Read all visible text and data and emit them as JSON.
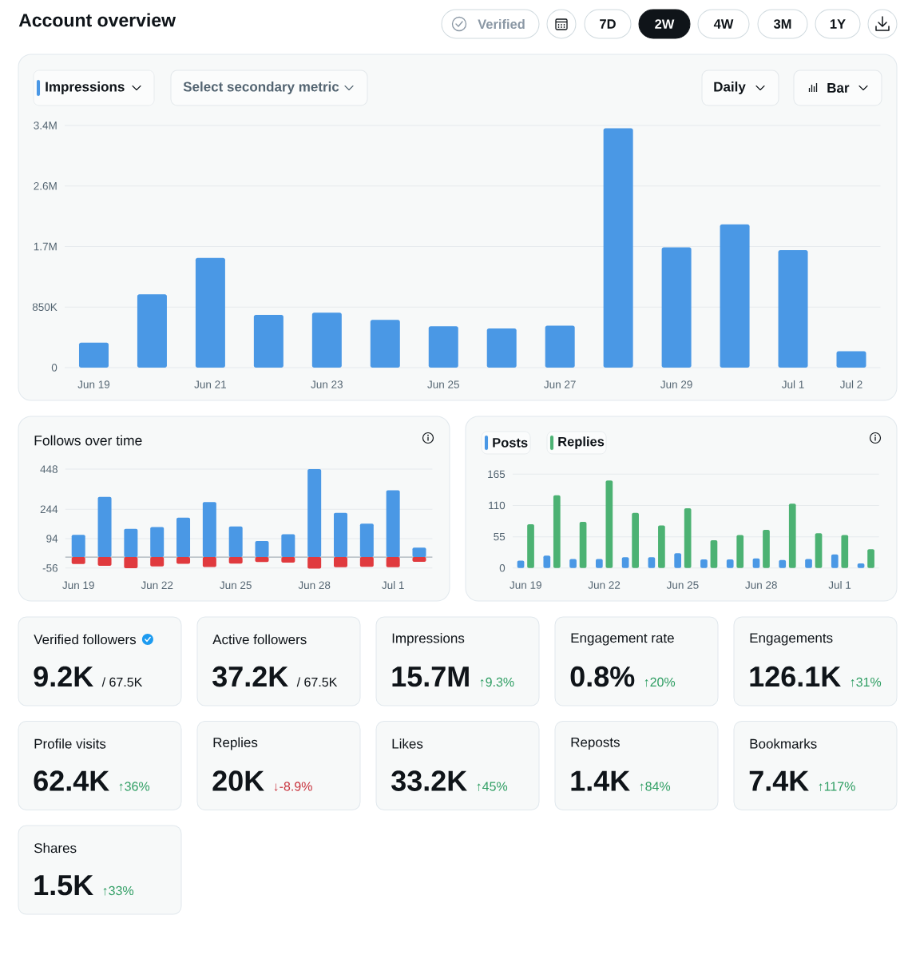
{
  "chart_data": [
    {
      "type": "other",
      "title": "Account overview",
      "annotations": [
        "Verified",
        "7D",
        "2W",
        "4W",
        "3M",
        "1Y"
      ]
    },
    {
      "type": "bar",
      "annotations": [
        "Select secondary metric",
        "Daily",
        "Bar"
      ],
      "categories": [
        "Jun 19",
        null,
        "Jun 21",
        null,
        "Jun 23",
        null,
        "Jun 25",
        null,
        "Jun 27",
        null,
        "Jun 29",
        null,
        "Jul 1",
        "Jul 2"
      ],
      "series": [
        {
          "name": "Impressions",
          "color": "#4a98e5",
          "values": [
            350000,
            1030000,
            1540000,
            740000,
            770000,
            670000,
            580000,
            550000,
            590000,
            3360000,
            1690000,
            2010000,
            1650000,
            230000
          ]
        }
      ],
      "ylim": [
        0,
        3400000
      ],
      "yticks": [
        0,
        {
          "value": 850000,
          "label": "850K"
        },
        {
          "value": 1700000,
          "label": "1.7M"
        },
        {
          "value": 2550000,
          "label": "2.6M"
        },
        {
          "value": 3400000,
          "label": "3.4M"
        }
      ],
      "grid": "y",
      "legend": "top left"
    },
    {
      "type": "bar",
      "title": "Follows over time",
      "stacked": true,
      "categories": [
        "Jun 19",
        null,
        null,
        "Jun 22",
        null,
        null,
        "Jun 25",
        null,
        null,
        "Jun 28",
        null,
        null,
        "Jul 1",
        null
      ],
      "series": [
        {
          "color": "#4a98e5",
          "values": [
            113,
            307,
            144,
            153,
            201,
            280,
            156,
            82,
            116,
            448,
            225,
            170,
            340,
            48
          ]
        },
        {
          "color": "#e03a3e",
          "values": [
            -35,
            -45,
            -57,
            -48,
            -34,
            -51,
            -33,
            -25,
            -28,
            -59,
            -52,
            -50,
            -52,
            -24
          ]
        }
      ],
      "ylim": [
        -60,
        448
      ],
      "yticks": [
        -56,
        94,
        244,
        448
      ],
      "grid": "y"
    },
    {
      "type": "bar",
      "categories": [
        "Jun 19",
        null,
        null,
        "Jun 22",
        null,
        null,
        "Jun 25",
        null,
        null,
        "Jun 28",
        null,
        null,
        "Jul 1",
        null
      ],
      "series": [
        {
          "name": "Posts",
          "color": "#4a98e5",
          "values": [
            13,
            22,
            16,
            16,
            19,
            19,
            26,
            15,
            15,
            17,
            14,
            16,
            24,
            8
          ]
        },
        {
          "name": "Replies",
          "color": "#4cb273",
          "values": [
            77,
            128,
            81,
            154,
            97,
            75,
            105,
            49,
            58,
            67,
            113,
            61,
            58,
            33
          ]
        }
      ],
      "ylim": [
        0,
        165
      ],
      "yticks": [
        0,
        55,
        110,
        165
      ],
      "grid": "y",
      "legend": "top left"
    },
    {
      "type": "other",
      "title": "Verified followers",
      "annotations": [
        "9.2K",
        "/ 67.5K"
      ],
      "colors": [
        "#0f1419",
        "#0f1419"
      ]
    },
    {
      "type": "other",
      "title": "Active followers",
      "annotations": [
        "37.2K",
        "/ 67.5K"
      ],
      "colors": [
        "#0f1419",
        "#0f1419"
      ]
    },
    {
      "type": "other",
      "title": "Impressions",
      "annotations": [
        "15.7M",
        "↑9.3%"
      ],
      "colors": [
        "#0f1419",
        "#2f9e63"
      ]
    },
    {
      "type": "other",
      "title": "Engagement rate",
      "annotations": [
        "0.8%",
        "↑20%"
      ],
      "colors": [
        "#0f1419",
        "#2f9e63"
      ]
    },
    {
      "type": "other",
      "title": "Engagements",
      "annotations": [
        "126.1K",
        "↑31%"
      ],
      "colors": [
        "#0f1419",
        "#2f9e63"
      ]
    },
    {
      "type": "other",
      "title": "Profile visits",
      "annotations": [
        "62.4K",
        "↑36%"
      ],
      "colors": [
        "#0f1419",
        "#2f9e63"
      ]
    },
    {
      "type": "other",
      "title": "Replies",
      "annotations": [
        "20K",
        "↓-8.9%"
      ],
      "colors": [
        "#0f1419",
        "#c9353f"
      ]
    },
    {
      "type": "other",
      "title": "Likes",
      "annotations": [
        "33.2K",
        "↑45%"
      ],
      "colors": [
        "#0f1419",
        "#2f9e63"
      ]
    },
    {
      "type": "other",
      "title": "Reposts",
      "annotations": [
        "1.4K",
        "↑84%"
      ],
      "colors": [
        "#0f1419",
        "#2f9e63"
      ]
    },
    {
      "type": "other",
      "title": "Bookmarks",
      "annotations": [
        "7.4K",
        "↑117%"
      ],
      "colors": [
        "#0f1419",
        "#2f9e63"
      ]
    },
    {
      "type": "other",
      "title": "Shares",
      "annotations": [
        "1.5K",
        "↑33%"
      ],
      "colors": [
        "#0f1419",
        "#2f9e63"
      ]
    }
  ]
}
